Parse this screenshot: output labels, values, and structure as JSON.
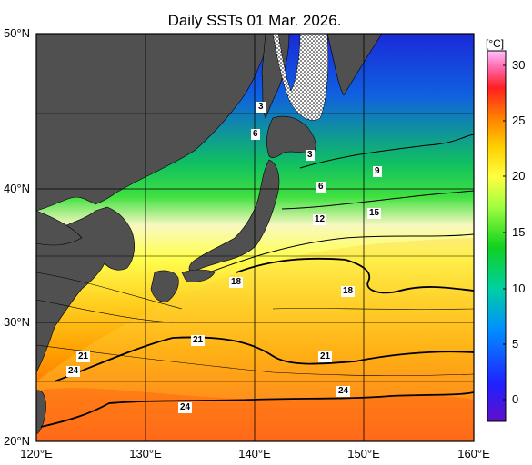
{
  "title": "Daily SSTs 01 Mar. 2026.",
  "lat_labels": [
    "50°N",
    "40°N",
    "30°N",
    "20°N"
  ],
  "lon_labels": [
    "120°E",
    "130°E",
    "140°E",
    "150°E",
    "160°E"
  ],
  "colorbar": {
    "unit": "[°C]",
    "ticks": [
      "30",
      "25",
      "20",
      "15",
      "10",
      "5",
      "0"
    ],
    "colors": [
      "#ff8aff",
      "#ff2020",
      "#ff8000",
      "#ffd000",
      "#ffff40",
      "#a0ff40",
      "#10d020",
      "#00c8a0",
      "#0090ff",
      "#2040ff",
      "#5010d0"
    ]
  },
  "contour_labels": [
    "3",
    "6",
    "3",
    "6",
    "9",
    "12",
    "15",
    "18",
    "18",
    "21",
    "21",
    "21",
    "24",
    "24",
    "24"
  ],
  "land_color": "#505050",
  "ice_note": "sea ice hatched"
}
